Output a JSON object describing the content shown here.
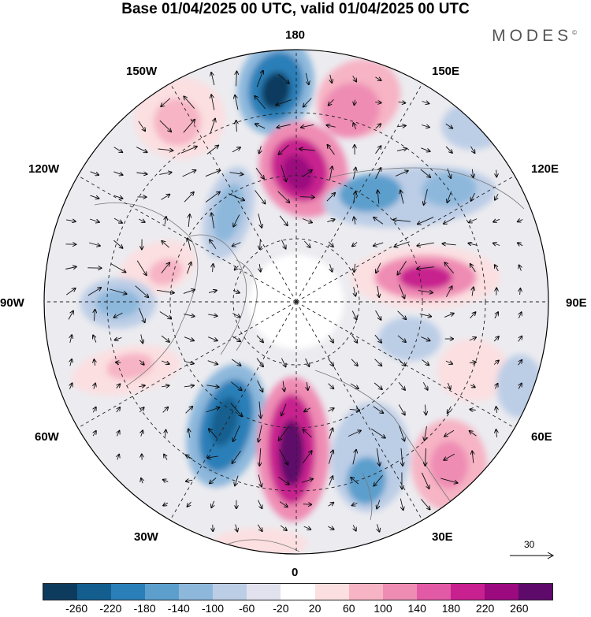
{
  "title": "Base 01/04/2025 00 UTC, valid 01/04/2025 00 UTC",
  "brand": "MODES",
  "brand_mark": "©",
  "longitude_labels": {
    "lon_180": "180",
    "lon_150e": "150E",
    "lon_120e": "120E",
    "lon_90e": "90E",
    "lon_60e": "60E",
    "lon_30e": "30E",
    "lon_0": "0",
    "lon_30w": "30W",
    "lon_60w": "60W",
    "lon_90w": "90W",
    "lon_120w": "120W",
    "lon_150w": "150W"
  },
  "reference_vector": {
    "label": "30"
  },
  "colorbar": {
    "colors": [
      "#0d3b5e",
      "#145e8f",
      "#2a7fb8",
      "#5c9fcd",
      "#8db8dc",
      "#bccde6",
      "#e2e2ef",
      "#ffffff",
      "#fbdfe1",
      "#f6b4c4",
      "#ef8cb4",
      "#e25aa6",
      "#c8208f",
      "#9b0a7f",
      "#5e0a6b"
    ],
    "ticks": [
      "-260",
      "-220",
      "-180",
      "-140",
      "-100",
      "-60",
      "-20",
      "20",
      "60",
      "100",
      "140",
      "180",
      "220",
      "260"
    ]
  }
}
